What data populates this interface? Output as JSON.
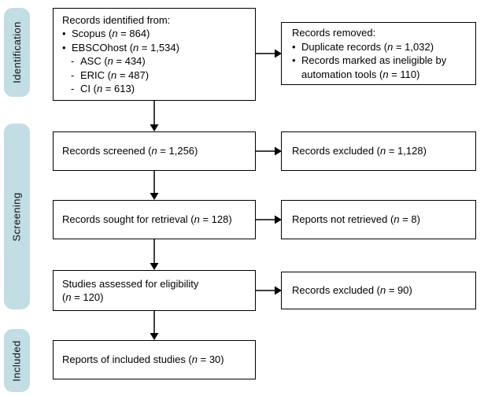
{
  "diagram": {
    "type": "flowchart",
    "stages": [
      {
        "label": "Identification"
      },
      {
        "label": "Screening"
      },
      {
        "label": "Included"
      }
    ],
    "boxes": {
      "identified": {
        "title": "Records identified from:",
        "bullets": [
          "Scopus (n = 864)",
          "EBSCOhost (n = 1,534)"
        ],
        "sub_bullets": [
          "ASC (n = 434)",
          "ERIC (n = 487)",
          "CI (n = 613)"
        ]
      },
      "removed": {
        "title": "Records removed:",
        "bullets": [
          "Duplicate records (n = 1,032)",
          "Records marked as ineligible by automation tools (n = 110)"
        ]
      },
      "screened": {
        "text": "Records screened (n = 1,256)"
      },
      "screened_excluded": {
        "text": "Records excluded (n = 1,128)"
      },
      "sought": {
        "text": "Records sought for retrieval (n = 128)"
      },
      "not_retrieved": {
        "text": "Reports not retrieved (n = 8)"
      },
      "assessed": {
        "line1": "Studies assessed for eligibility",
        "line2": "(n = 120)"
      },
      "assessed_excluded": {
        "text": "Records excluded (n = 90)"
      },
      "included_studies": {
        "text": "Reports of included studies (n = 30)"
      }
    },
    "colors": {
      "stage_pill_bg": "#c2dde3",
      "box_border": "#000000",
      "box_bg": "#ffffff",
      "text": "#000000"
    }
  }
}
